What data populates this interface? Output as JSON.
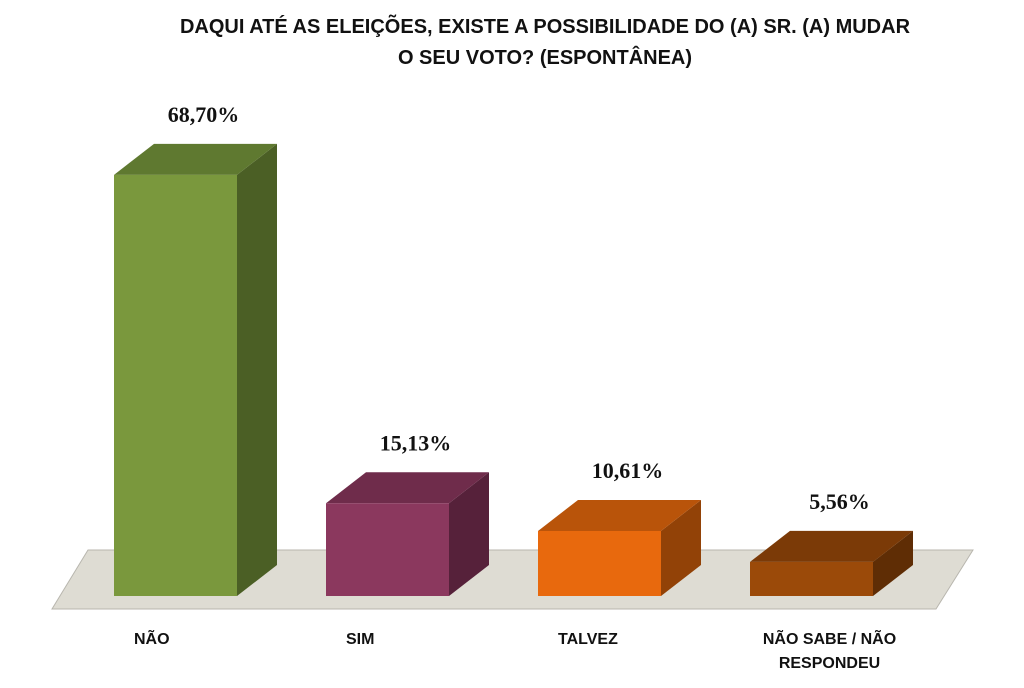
{
  "chart_data": {
    "type": "bar",
    "title_lines": [
      "DAQUI ATÉ AS ELEIÇÕES, EXISTE A POSSIBILIDADE DO (A) SR. (A) MUDAR",
      "O SEU VOTO? (ESPONTÂNEA)"
    ],
    "categories": [
      "NÃO",
      "SIM",
      "TALVEZ",
      "NÃO SABE / NÃO RESPONDEU"
    ],
    "category_label_lines": [
      [
        "NÃO"
      ],
      [
        "SIM"
      ],
      [
        "TALVEZ"
      ],
      [
        "NÃO SABE / NÃO",
        "RESPONDEU"
      ]
    ],
    "values": [
      68.7,
      15.13,
      10.61,
      5.56
    ],
    "value_labels": [
      "68,70%",
      "15,13%",
      "10,61%",
      "5,56%"
    ],
    "colors": {
      "front": [
        "#7a983d",
        "#8b385e",
        "#e8690d",
        "#9b4a09"
      ],
      "top": [
        "#5f7930",
        "#6f2c4b",
        "#b9540a",
        "#7b3a07"
      ],
      "side": [
        "#4b5f25",
        "#56213a",
        "#924207",
        "#5f2d05"
      ],
      "floor": "#dedcd3",
      "floor_stroke": "#b8b6ae"
    },
    "ylim": [
      0,
      70
    ],
    "grid": false,
    "legend": "none",
    "three_d": true
  }
}
